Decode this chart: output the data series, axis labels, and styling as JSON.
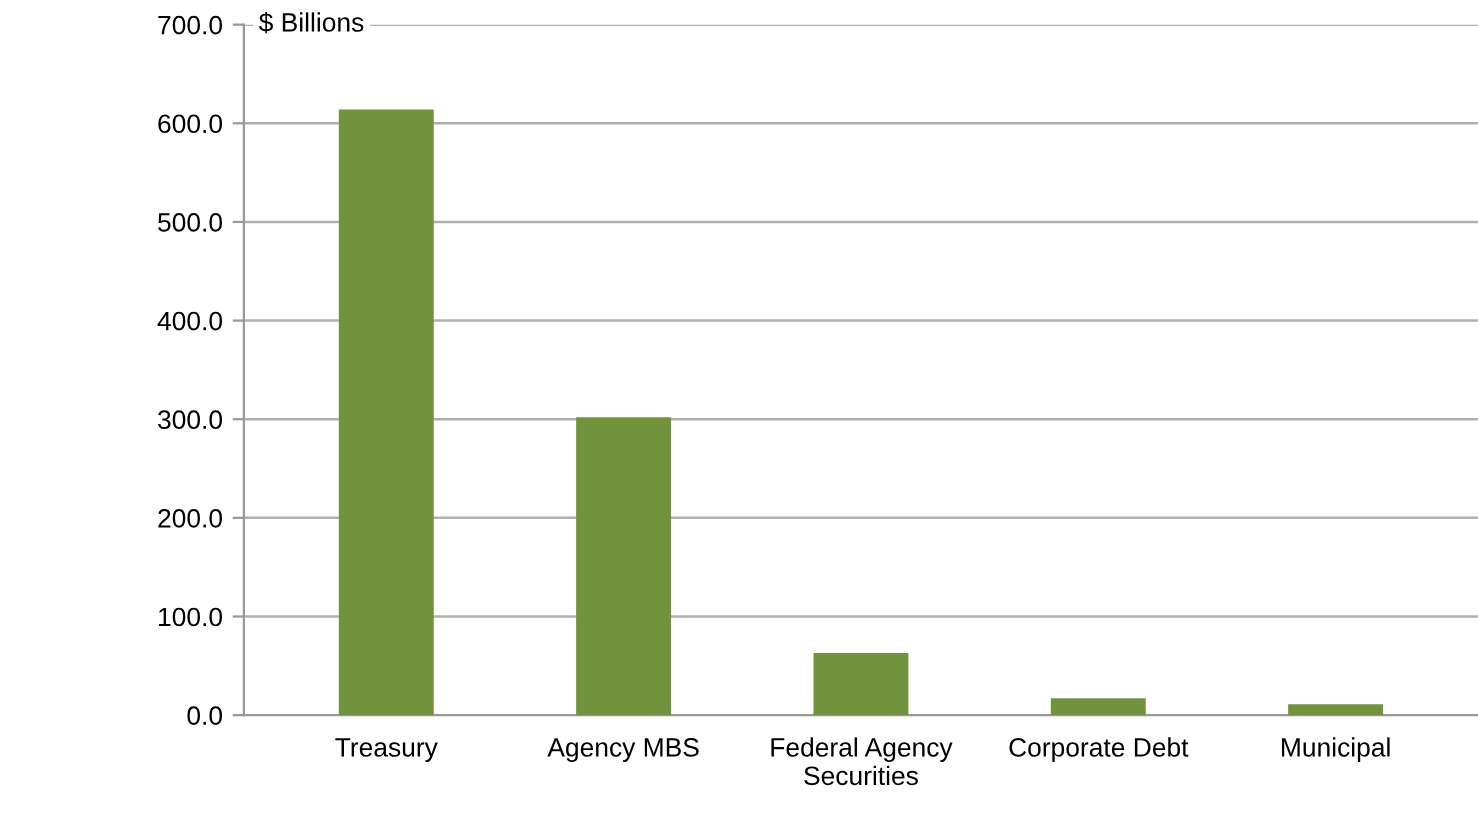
{
  "chart_data": {
    "type": "bar",
    "ylabel": "$ Billions",
    "categories": [
      "Treasury",
      "Agency MBS",
      "Federal Agency\nSecurities",
      "Corporate Debt",
      "Municipal"
    ],
    "values": [
      614,
      302,
      63,
      17,
      11
    ],
    "color": "#70933b",
    "ylim": [
      0,
      700
    ],
    "yticks": [
      {
        "value": 0,
        "label": "0.0"
      },
      {
        "value": 100,
        "label": "100.0"
      },
      {
        "value": 200,
        "label": "200.0"
      },
      {
        "value": 300,
        "label": "300.0"
      },
      {
        "value": 400,
        "label": "400.0"
      },
      {
        "value": 500,
        "label": "500.0"
      },
      {
        "value": 600,
        "label": "600.0"
      },
      {
        "value": 700,
        "label": "700.0"
      }
    ],
    "grid": "y"
  }
}
